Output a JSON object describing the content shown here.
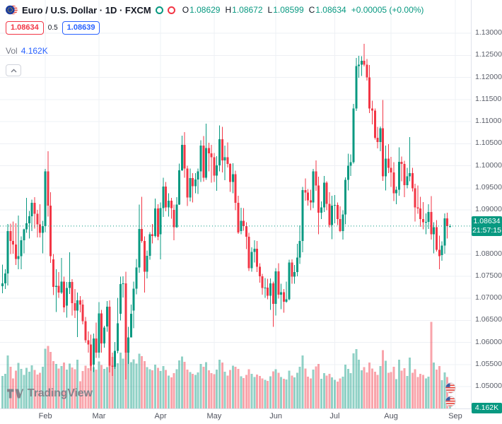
{
  "legend": {
    "title": "Euro / U.S. Dollar · 1D · FXCM",
    "ohlc": {
      "o_label": "O",
      "o": "1.08629",
      "h_label": "H",
      "h": "1.08672",
      "l_label": "L",
      "l": "1.08599",
      "c_label": "C",
      "c": "1.08634",
      "change": "+0.00005 (+0.00%)"
    },
    "sell_price": "1.08634",
    "spread": "0.5",
    "buy_price": "1.08639",
    "vol_label": "Vol",
    "vol_value": "4.162K"
  },
  "badges": {
    "last_price": "1.08634",
    "countdown": "21:57:15",
    "volume": "4.162K"
  },
  "logo": {
    "text": "TradingView"
  },
  "chart_data": {
    "type": "candlestick",
    "title": "Euro / U.S. Dollar",
    "interval": "1D",
    "exchange": "FXCM",
    "last_bar": {
      "open": 1.08629,
      "high": 1.08672,
      "low": 1.08599,
      "close": 1.08634,
      "change": 5e-05,
      "change_pct": 0.0
    },
    "current_price": 1.08634,
    "countdown": "21:57:15",
    "current_volume_label": "4.162K",
    "price_axis_range": [
      1.045,
      1.1375
    ],
    "volume_axis_max": 130000,
    "grid": true,
    "price_ticks": [
      "1.13000",
      "1.12500",
      "1.12000",
      "1.11500",
      "1.11000",
      "1.10500",
      "1.10000",
      "1.09500",
      "1.09000",
      "1.08500",
      "1.08000",
      "1.07500",
      "1.07000",
      "1.06500",
      "1.06000",
      "1.05500",
      "1.05000"
    ],
    "month_ticks": [
      {
        "label": "Feb",
        "index": 16
      },
      {
        "label": "Mar",
        "index": 36
      },
      {
        "label": "Apr",
        "index": 59
      },
      {
        "label": "May",
        "index": 79
      },
      {
        "label": "Jun",
        "index": 102
      },
      {
        "label": "Jul",
        "index": 124
      },
      {
        "label": "Aug",
        "index": 145
      },
      {
        "label": "Sep",
        "index": 169
      }
    ],
    "colors": {
      "up": "#089981",
      "down": "#f23645",
      "volume_up": "rgba(8,153,129,0.45)",
      "volume_down": "rgba(242,54,69,0.45)",
      "accent_blue": "#2962ff",
      "badge_green": "#089981"
    },
    "candles": [
      [
        1.0727,
        1.0776,
        1.0711,
        1.0734
      ],
      [
        1.0734,
        1.0766,
        1.0721,
        1.0756
      ],
      [
        1.0756,
        1.0868,
        1.0729,
        1.0852
      ],
      [
        1.0852,
        1.0869,
        1.08,
        1.083
      ],
      [
        1.083,
        1.0874,
        1.0801,
        1.0822
      ],
      [
        1.0822,
        1.087,
        1.0775,
        1.0789
      ],
      [
        1.0789,
        1.0887,
        1.0766,
        1.0795
      ],
      [
        1.0795,
        1.084,
        1.0766,
        1.0831
      ],
      [
        1.0831,
        1.0858,
        1.0802,
        1.0856
      ],
      [
        1.0856,
        1.0927,
        1.0848,
        1.087
      ],
      [
        1.087,
        1.0898,
        1.0835,
        1.0886
      ],
      [
        1.0886,
        1.0923,
        1.0852,
        1.0916
      ],
      [
        1.0916,
        1.0929,
        1.0858,
        1.0891
      ],
      [
        1.0891,
        1.09,
        1.0838,
        1.0867
      ],
      [
        1.0867,
        1.0913,
        1.0838,
        1.0848
      ],
      [
        1.0848,
        1.0875,
        1.0802,
        1.0863
      ],
      [
        1.0863,
        1.0993,
        1.085,
        1.0987
      ],
      [
        1.0987,
        1.1033,
        1.0885,
        1.091
      ],
      [
        1.091,
        1.094,
        1.078,
        1.0795
      ],
      [
        1.0788,
        1.08,
        1.0707,
        1.0726
      ],
      [
        1.0726,
        1.0766,
        1.0669,
        1.0728
      ],
      [
        1.0728,
        1.0759,
        1.0701,
        1.0713
      ],
      [
        1.0713,
        1.0791,
        1.071,
        1.0738
      ],
      [
        1.0738,
        1.0749,
        1.0668,
        1.0679
      ],
      [
        1.0683,
        1.0737,
        1.0656,
        1.0723
      ],
      [
        1.0723,
        1.0804,
        1.071,
        1.0737
      ],
      [
        1.0737,
        1.0743,
        1.0661,
        1.0689
      ],
      [
        1.0689,
        1.0721,
        1.0655,
        1.0672
      ],
      [
        1.0672,
        1.0713,
        1.0612,
        1.0695
      ],
      [
        1.0695,
        1.0705,
        1.0668,
        1.0686
      ],
      [
        1.0686,
        1.0697,
        1.0641,
        1.0648
      ],
      [
        1.0648,
        1.0658,
        1.0599,
        1.0605
      ],
      [
        1.0605,
        1.0625,
        1.0577,
        1.0595
      ],
      [
        1.0595,
        1.0618,
        1.0536,
        1.0547
      ],
      [
        1.055,
        1.062,
        1.0533,
        1.0609
      ],
      [
        1.0609,
        1.0645,
        1.0565,
        1.0577
      ],
      [
        1.0577,
        1.0691,
        1.0565,
        1.0666
      ],
      [
        1.0666,
        1.0674,
        1.0577,
        1.0598
      ],
      [
        1.0598,
        1.0638,
        1.0588,
        1.0634
      ],
      [
        1.0636,
        1.0694,
        1.0624,
        1.0681
      ],
      [
        1.0681,
        1.0695,
        1.0532,
        1.0547
      ],
      [
        1.0547,
        1.0577,
        1.0524,
        1.0545
      ],
      [
        1.0545,
        1.0601,
        1.054,
        1.0581
      ],
      [
        1.0581,
        1.0701,
        1.0575,
        1.0643
      ],
      [
        1.0665,
        1.0749,
        1.065,
        1.0732
      ],
      [
        1.0732,
        1.075,
        1.0702,
        1.0734
      ],
      [
        1.0734,
        1.076,
        1.0516,
        1.0577
      ],
      [
        1.0577,
        1.0635,
        1.0551,
        1.0611
      ],
      [
        1.0611,
        1.0686,
        1.0611,
        1.0665
      ],
      [
        1.0672,
        1.0738,
        1.0632,
        1.0722
      ],
      [
        1.0722,
        1.0789,
        1.0709,
        1.077
      ],
      [
        1.077,
        1.0912,
        1.0758,
        1.0857
      ],
      [
        1.0857,
        1.093,
        1.0826,
        1.083
      ],
      [
        1.083,
        1.084,
        1.0713,
        1.076
      ],
      [
        1.076,
        1.0808,
        1.0745,
        1.0796
      ],
      [
        1.0796,
        1.085,
        1.0787,
        1.0845
      ],
      [
        1.0845,
        1.0868,
        1.0824,
        1.0841
      ],
      [
        1.0841,
        1.0926,
        1.0838,
        1.0903
      ],
      [
        1.0903,
        1.0913,
        1.0831,
        1.0839
      ],
      [
        1.0845,
        1.0917,
        1.0788,
        1.0904
      ],
      [
        1.0904,
        1.0973,
        1.0884,
        1.0953
      ],
      [
        1.0953,
        1.0963,
        1.0897,
        1.0906
      ],
      [
        1.0906,
        1.0938,
        1.0885,
        1.0921
      ],
      [
        1.0921,
        1.0927,
        1.088,
        1.0904
      ],
      [
        1.09,
        1.0912,
        1.0831,
        1.0861
      ],
      [
        1.0861,
        1.0929,
        1.0859,
        1.0912
      ],
      [
        1.0912,
        1.1005,
        1.0911,
        1.099
      ],
      [
        1.099,
        1.1068,
        1.0988,
        1.1047
      ],
      [
        1.1047,
        1.1076,
        1.0973,
        1.0994
      ],
      [
        1.0994,
        1.1,
        1.0909,
        1.0928
      ],
      [
        1.0928,
        1.0994,
        1.0919,
        1.0972
      ],
      [
        1.0972,
        1.0983,
        1.0917,
        1.0954
      ],
      [
        1.0954,
        1.0983,
        1.0938,
        1.0969
      ],
      [
        1.0969,
        1.0994,
        1.0936,
        1.0987
      ],
      [
        1.0987,
        1.1058,
        1.0963,
        1.1046
      ],
      [
        1.1046,
        1.1067,
        1.0964,
        1.0973
      ],
      [
        1.0973,
        1.1095,
        1.0968,
        1.104
      ],
      [
        1.104,
        1.1052,
        1.0987,
        1.1028
      ],
      [
        1.1028,
        1.1047,
        1.0962,
        1.1019
      ],
      [
        1.1019,
        1.1029,
        1.0963,
        1.0978
      ],
      [
        1.0978,
        1.1022,
        1.0943,
        1.1001
      ],
      [
        1.1001,
        1.1091,
        1.0987,
        1.106
      ],
      [
        1.106,
        1.1088,
        1.0985,
        1.1012
      ],
      [
        1.1012,
        1.1046,
        1.0967,
        1.1019
      ],
      [
        1.1019,
        1.1053,
        1.0996,
        1.1004
      ],
      [
        1.1004,
        1.1006,
        1.0941,
        1.0963
      ],
      [
        1.0963,
        1.1006,
        1.0938,
        1.0981
      ],
      [
        1.0981,
        1.0989,
        1.0899,
        1.0916
      ],
      [
        1.0916,
        1.0932,
        1.0846,
        1.0849
      ],
      [
        1.0852,
        1.0905,
        1.0845,
        1.0875
      ],
      [
        1.0875,
        1.0904,
        1.0853,
        1.0863
      ],
      [
        1.0863,
        1.0872,
        1.0811,
        1.0839
      ],
      [
        1.0839,
        1.0848,
        1.0762,
        1.0768
      ],
      [
        1.0768,
        1.0815,
        1.076,
        1.0805
      ],
      [
        1.0805,
        1.0831,
        1.0781,
        1.0812
      ],
      [
        1.0812,
        1.083,
        1.0759,
        1.0771
      ],
      [
        1.0771,
        1.0779,
        1.0735,
        1.075
      ],
      [
        1.075,
        1.0755,
        1.0708,
        1.0723
      ],
      [
        1.0723,
        1.0746,
        1.0701,
        1.0724
      ],
      [
        1.0724,
        1.0744,
        1.0698,
        1.0706
      ],
      [
        1.0706,
        1.0745,
        1.0674,
        1.0734
      ],
      [
        1.0734,
        1.0738,
        1.0635,
        1.0687
      ],
      [
        1.0687,
        1.0768,
        1.0661,
        1.0761
      ],
      [
        1.0761,
        1.0779,
        1.0699,
        1.0708
      ],
      [
        1.0708,
        1.0733,
        1.0675,
        1.0714
      ],
      [
        1.0714,
        1.0721,
        1.0667,
        1.0692
      ],
      [
        1.0692,
        1.0738,
        1.069,
        1.0698
      ],
      [
        1.0698,
        1.0787,
        1.0695,
        1.0781
      ],
      [
        1.0781,
        1.0788,
        1.0733,
        1.0749
      ],
      [
        1.0749,
        1.0775,
        1.0733,
        1.0759
      ],
      [
        1.0759,
        1.0823,
        1.075,
        1.0792
      ],
      [
        1.0792,
        1.0865,
        1.0778,
        1.083
      ],
      [
        1.083,
        1.0952,
        1.0804,
        1.0945
      ],
      [
        1.0945,
        1.0971,
        1.0921,
        1.0939
      ],
      [
        1.0939,
        1.0947,
        1.091,
        1.0922
      ],
      [
        1.0922,
        1.0946,
        1.0899,
        1.0917
      ],
      [
        1.0917,
        1.0993,
        1.0904,
        1.0987
      ],
      [
        1.0987,
        1.1012,
        1.0943,
        1.0955
      ],
      [
        1.0955,
        1.0975,
        1.0845,
        1.0894
      ],
      [
        1.0894,
        1.0919,
        1.0879,
        1.0906
      ],
      [
        1.0906,
        1.0977,
        1.0895,
        1.0962
      ],
      [
        1.0962,
        1.0965,
        1.0899,
        1.0914
      ],
      [
        1.0914,
        1.094,
        1.086,
        1.0866
      ],
      [
        1.0866,
        1.0932,
        1.0834,
        1.091
      ],
      [
        1.091,
        1.0934,
        1.087,
        1.0911
      ],
      [
        1.0911,
        1.0917,
        1.0866,
        1.0879
      ],
      [
        1.0879,
        1.0908,
        1.085,
        1.0852
      ],
      [
        1.0852,
        1.0899,
        1.0833,
        1.089
      ],
      [
        1.089,
        1.0974,
        1.0867,
        1.0968
      ],
      [
        1.0968,
        1.1027,
        1.0944,
        1.1
      ],
      [
        1.1,
        1.1026,
        1.0977,
        1.1008
      ],
      [
        1.1008,
        1.114,
        1.1005,
        1.113
      ],
      [
        1.113,
        1.1244,
        1.1124,
        1.1226
      ],
      [
        1.1226,
        1.1249,
        1.1199,
        1.1229
      ],
      [
        1.1229,
        1.1248,
        1.1203,
        1.1238
      ],
      [
        1.1238,
        1.1276,
        1.1225,
        1.1229
      ],
      [
        1.1229,
        1.1242,
        1.1193,
        1.12
      ],
      [
        1.12,
        1.1228,
        1.1119,
        1.113
      ],
      [
        1.113,
        1.1147,
        1.1094,
        1.1125
      ],
      [
        1.1125,
        1.113,
        1.1059,
        1.1063
      ],
      [
        1.1063,
        1.1088,
        1.1039,
        1.1054
      ],
      [
        1.1054,
        1.1089,
        1.1033,
        1.1085
      ],
      [
        1.1085,
        1.1149,
        1.0966,
        1.0976
      ],
      [
        1.0976,
        1.1046,
        1.0944,
        1.1016
      ],
      [
        1.1016,
        1.1049,
        1.0983,
        1.0995
      ],
      [
        1.0995,
        1.102,
        1.0952,
        1.0985
      ],
      [
        1.0985,
        1.1008,
        1.092,
        1.0938
      ],
      [
        1.0938,
        1.0953,
        1.0913,
        1.0946
      ],
      [
        1.0946,
        1.1042,
        1.0932,
        1.1009
      ],
      [
        1.1009,
        1.1021,
        1.0965,
        1.1004
      ],
      [
        1.1004,
        1.1011,
        1.0929,
        1.0956
      ],
      [
        1.0956,
        1.0995,
        1.0949,
        1.0976
      ],
      [
        1.0976,
        1.1065,
        1.0965,
        1.0983
      ],
      [
        1.0983,
        1.0995,
        1.0942,
        1.0949
      ],
      [
        1.0949,
        1.0959,
        1.0874,
        1.0906
      ],
      [
        1.0906,
        1.0955,
        1.0891,
        1.0903
      ],
      [
        1.0903,
        1.093,
        1.0862,
        1.0879
      ],
      [
        1.0879,
        1.0918,
        1.0856,
        1.0872
      ],
      [
        1.0872,
        1.0892,
        1.0845,
        1.0873
      ],
      [
        1.0873,
        1.0913,
        1.0857,
        1.0895
      ],
      [
        1.0895,
        1.0931,
        1.0833,
        1.0845
      ],
      [
        1.0845,
        1.0872,
        1.0802,
        1.0861
      ],
      [
        1.0861,
        1.0877,
        1.0806,
        1.081
      ],
      [
        1.081,
        1.0842,
        1.0766,
        1.0795
      ],
      [
        1.0798,
        1.0829,
        1.0785,
        1.0819
      ],
      [
        1.0819,
        1.0892,
        1.0801,
        1.0881
      ],
      [
        1.0881,
        1.0894,
        1.0835,
        1.08629
      ],
      [
        1.08629,
        1.08672,
        1.08599,
        1.08634
      ]
    ],
    "volumes": [
      48200,
      51300,
      78500,
      62100,
      44800,
      56200,
      67400,
      58900,
      49600,
      60300,
      54700,
      63800,
      57200,
      50100,
      52900,
      61700,
      88400,
      92600,
      84100,
      70300,
      65800,
      59400,
      62700,
      68200,
      57600,
      66400,
      60800,
      58100,
      72300,
      40200,
      55600,
      63400,
      59800,
      74500,
      61200,
      57900,
      69800,
      64300,
      58700,
      61500,
      89200,
      76400,
      70800,
      67300,
      82600,
      74100,
      98400,
      85200,
      68700,
      72900,
      66800,
      81300,
      77600,
      70200,
      61400,
      58300,
      56700,
      64800,
      60200,
      55400,
      62800,
      57100,
      48900,
      46300,
      52600,
      58400,
      71200,
      76800,
      69400,
      57800,
      54200,
      51600,
      49800,
      53700,
      66300,
      62100,
      68900,
      56400,
      52300,
      50800,
      57400,
      72600,
      68100,
      54300,
      48700,
      56900,
      63200,
      61800,
      58600,
      47900,
      45200,
      49600,
      58300,
      51400,
      46800,
      50200,
      48100,
      44600,
      42300,
      40800,
      47600,
      54900,
      58200,
      52700,
      46400,
      44100,
      42800,
      56300,
      48600,
      45900,
      53200,
      61700,
      78400,
      59300,
      47200,
      44700,
      57800,
      62400,
      66100,
      43800,
      52600,
      48900,
      51300,
      46200,
      42600,
      40100,
      44800,
      47300,
      65200,
      58700,
      52400,
      81600,
      88300,
      72100,
      56800,
      61400,
      53700,
      67900,
      59200,
      54600,
      49800,
      63100,
      86400,
      70800,
      52900,
      54200,
      61800,
      43700,
      72400,
      56100,
      59800,
      48300,
      75600,
      52700,
      58400,
      46900,
      51200,
      49600,
      44800,
      47300,
      128400,
      68200,
      57600,
      62800,
      41900,
      53400,
      46700,
      4162
    ]
  }
}
